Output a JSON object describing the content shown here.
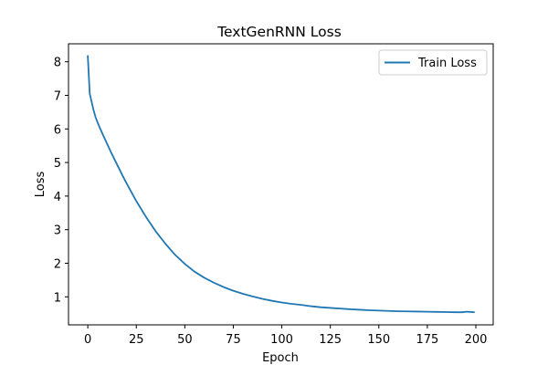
{
  "chart_data": {
    "type": "line",
    "title": "TextGenRNN Loss",
    "xlabel": "Epoch",
    "ylabel": "Loss",
    "xlim": [
      -9.95,
      208.95
    ],
    "ylim": [
      0.165,
      8.535
    ],
    "xticks": [
      0,
      25,
      50,
      75,
      100,
      125,
      150,
      175,
      200
    ],
    "yticks": [
      1,
      2,
      3,
      4,
      5,
      6,
      7,
      8
    ],
    "grid": false,
    "legend_position": "top-right",
    "colors": {
      "series": "#1f77b4",
      "axes": "#000000",
      "legend_border": "#cccccc"
    },
    "series": [
      {
        "name": "Train Loss",
        "x": [
          0,
          1,
          2,
          3,
          4,
          5,
          6,
          8,
          10,
          12,
          15,
          18,
          20,
          25,
          30,
          35,
          40,
          45,
          50,
          55,
          60,
          65,
          70,
          75,
          80,
          85,
          90,
          95,
          100,
          105,
          110,
          115,
          120,
          125,
          130,
          135,
          140,
          145,
          150,
          155,
          160,
          165,
          170,
          175,
          180,
          185,
          190,
          193,
          195,
          197,
          199
        ],
        "y": [
          8.17,
          7.05,
          6.8,
          6.55,
          6.35,
          6.2,
          6.06,
          5.8,
          5.55,
          5.3,
          4.95,
          4.6,
          4.38,
          3.85,
          3.38,
          2.95,
          2.58,
          2.25,
          1.98,
          1.75,
          1.57,
          1.42,
          1.29,
          1.18,
          1.09,
          1.01,
          0.94,
          0.88,
          0.83,
          0.79,
          0.76,
          0.72,
          0.69,
          0.67,
          0.65,
          0.63,
          0.615,
          0.6,
          0.59,
          0.58,
          0.57,
          0.565,
          0.56,
          0.555,
          0.55,
          0.545,
          0.54,
          0.54,
          0.555,
          0.55,
          0.54
        ]
      }
    ]
  }
}
